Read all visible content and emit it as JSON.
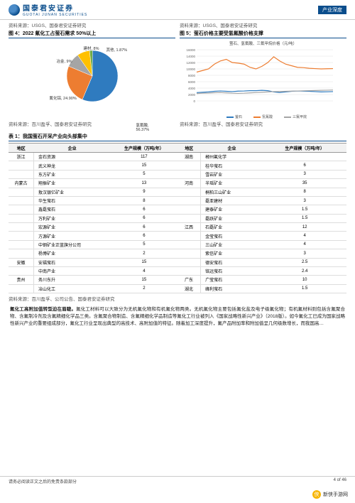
{
  "header": {
    "logo_cn": "国泰君安证券",
    "logo_en": "GUOTAI JUNAN SECURITIES",
    "tag": "产业深度"
  },
  "source_top": "资料来源：USGS、国泰君安证券研究",
  "source_top2": "资料来源：USGS、国泰君安证券研究",
  "fig4": {
    "title": "图 4：2022 氟化工占萤石需求 50%以上",
    "type": "pie",
    "slices": [
      {
        "label": "氢氟酸, 56.37%",
        "value": 56.37,
        "color": "#2f7bbf"
      },
      {
        "label": "氟化铝, 24.90%",
        "value": 24.9,
        "color": "#ed7d31"
      },
      {
        "label": "冶金, 9%",
        "value": 9.0,
        "color": "#a5a5a5"
      },
      {
        "label": "建材, 8%",
        "value": 8.0,
        "color": "#ffc000"
      },
      {
        "label": "其他, 1.87%",
        "value": 1.87,
        "color": "#70ad47"
      }
    ],
    "background": "#ffffff"
  },
  "fig5": {
    "title": "图 5：萤石价格主要受氢氟酸价格支撑",
    "subtitle": "萤石、氢氟酸、三氟甲烷价格（元/吨）",
    "type": "line",
    "ylim": [
      0,
      16000
    ],
    "ytick_step": 2000,
    "series": [
      {
        "name": "萤石",
        "color": "#2f7bbf",
        "values": [
          2600,
          2700,
          2800,
          3000,
          3100,
          3000,
          2900,
          3050,
          3100,
          3200,
          3200,
          3300,
          3200,
          2800,
          2600,
          2800,
          3000,
          3100,
          3050,
          3000,
          2900,
          2800,
          2850,
          2900
        ]
      },
      {
        "name": "氢氟酸",
        "color": "#ed7d31",
        "values": [
          9000,
          9500,
          10000,
          11500,
          12500,
          13000,
          12000,
          11800,
          11500,
          10500,
          10000,
          10800,
          12000,
          13800,
          12500,
          11500,
          11000,
          10500,
          10400,
          10200,
          10100,
          10000,
          10050,
          10100
        ]
      },
      {
        "name": "三氟甲烷",
        "color": "#a5a5a5",
        "values": [
          2300,
          2400,
          2450,
          2550,
          2600,
          2500,
          2400,
          2350,
          2400,
          2500,
          2600,
          2700,
          2800,
          2900,
          2950,
          3000,
          3050,
          3100,
          3150,
          3200,
          3250,
          3300,
          3350,
          3400
        ]
      }
    ],
    "legend": [
      "萤石",
      "氢氟酸",
      "三氟甲烷"
    ],
    "grid_color": "#e0e0e0",
    "background": "#ffffff"
  },
  "source_fig": "资料来源：百川盈孚、国泰君安证券研究",
  "source_fig2": "资料来源：百川盈孚、国泰君安证券研究",
  "table": {
    "title": "表 1：我国萤石开采产业向头部集中",
    "headers": [
      "地区",
      "企业",
      "生产规模（万吨/年）"
    ],
    "left": [
      {
        "region": "浙江",
        "company": "金石资源",
        "scale": "117"
      },
      {
        "region": "",
        "company": "武义神龙",
        "scale": "15"
      },
      {
        "region": "",
        "company": "东方矿业",
        "scale": "5"
      },
      {
        "region": "内蒙古",
        "company": "翔振矿业",
        "scale": "13"
      },
      {
        "region": "",
        "company": "敖汉银亿矿业",
        "scale": "9"
      },
      {
        "region": "",
        "company": "华生萤石",
        "scale": "8"
      },
      {
        "region": "",
        "company": "鑫磊萤石",
        "scale": "6"
      },
      {
        "region": "",
        "company": "万利矿业",
        "scale": "6"
      },
      {
        "region": "",
        "company": "宏源矿业",
        "scale": "6"
      },
      {
        "region": "",
        "company": "方源矿业",
        "scale": "6"
      },
      {
        "region": "",
        "company": "中钢矿业正蓝旗分公司",
        "scale": "5"
      },
      {
        "region": "",
        "company": "杨博矿业",
        "scale": "2"
      },
      {
        "region": "安徽",
        "company": "安福萤石",
        "scale": "15"
      },
      {
        "region": "",
        "company": "中南产业",
        "scale": "4"
      },
      {
        "region": "贵州",
        "company": "务川东升",
        "scale": "15"
      },
      {
        "region": "",
        "company": "冶山化工",
        "scale": "2"
      }
    ],
    "right": [
      {
        "region": "湖南",
        "company": "郴州氟化学",
        "scale": ""
      },
      {
        "region": "",
        "company": "桂华萤石",
        "scale": "6"
      },
      {
        "region": "",
        "company": "雪岩矿业",
        "scale": "3"
      },
      {
        "region": "河南",
        "company": "半瑶矿业",
        "scale": "35"
      },
      {
        "region": "",
        "company": "桐柏三山矿业",
        "scale": "8"
      },
      {
        "region": "",
        "company": "磊亚建材",
        "scale": "3"
      },
      {
        "region": "",
        "company": "建泰矿业",
        "scale": "1.5"
      },
      {
        "region": "",
        "company": "磊跃矿业",
        "scale": "1.5"
      },
      {
        "region": "江西",
        "company": "石磊矿业",
        "scale": "12"
      },
      {
        "region": "",
        "company": "金莹萤石",
        "scale": "4"
      },
      {
        "region": "",
        "company": "三山矿业",
        "scale": "4"
      },
      {
        "region": "",
        "company": "紫信矿业",
        "scale": "3"
      },
      {
        "region": "",
        "company": "德安萤石",
        "scale": "2.5"
      },
      {
        "region": "",
        "company": "铭远萤石",
        "scale": "2.4"
      },
      {
        "region": "广东",
        "company": "广莹萤石",
        "scale": "10"
      },
      {
        "region": "湖北",
        "company": "峰利萤石",
        "scale": "1.5"
      }
    ],
    "source": "资料来源：百川盈孚、公司公告、国泰君安证券研究"
  },
  "paragraph": {
    "lead": "氟化工高附加值转型迫在眉睫。",
    "body": "氟化工材料可以大致分为无机氟化物和有机氟化物两类。无机氟化物主要包括氟化盐及电子级氟化物；有机氟材料则包括含氟聚合物、含氟制冷剂及含氟精细化学品三类。含氟聚合物制造、含氟精细化学品制造等氟化工行业被列入《国家战略性新兴产业》（2018版）。如今氟化工已成为国家战略性新兴产业的重要组成部分，氟化工行业呈现出典型的高技术、高附加值的特征。随着加工深度提升，氟产品附加率和附加值呈几何级数增长，而我国高…"
  },
  "footer": {
    "left": "请务必阅读正文之后的免责条款部分",
    "right": "4 of 46"
  },
  "watermark": "新侠手游网"
}
